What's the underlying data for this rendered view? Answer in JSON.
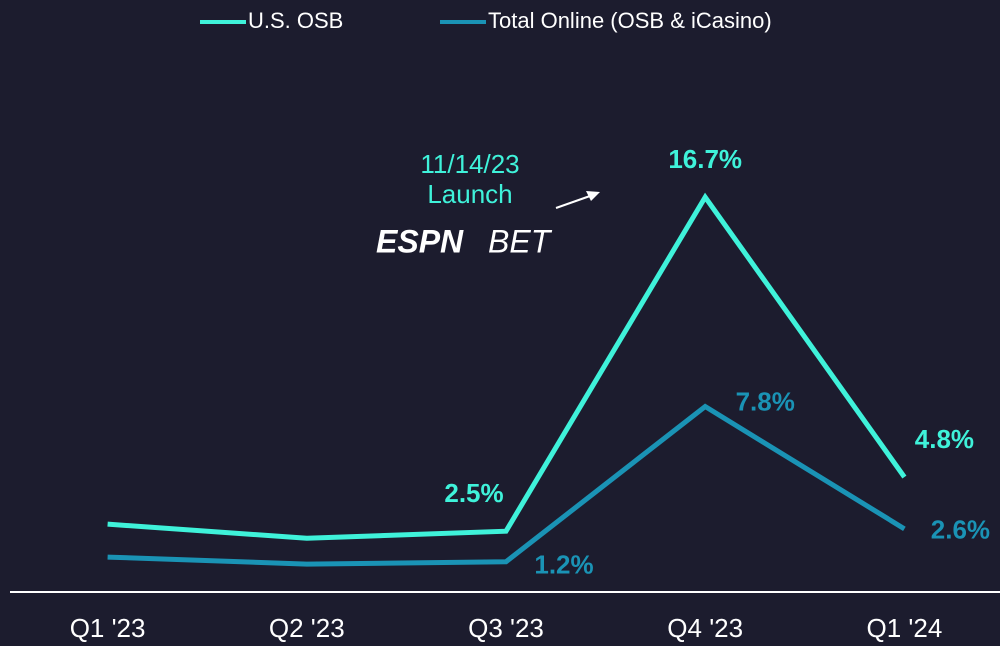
{
  "chart_data": {
    "type": "line",
    "categories": [
      "Q1 '23",
      "Q2 '23",
      "Q3 '23",
      "Q4 '23",
      "Q1 '24"
    ],
    "series": [
      {
        "name": "U.S. OSB",
        "color": "#3ff2da",
        "values": [
          2.8,
          2.2,
          2.5,
          16.7,
          4.8
        ],
        "value_labels": [
          null,
          null,
          "2.5%",
          "16.7%",
          "4.8%"
        ]
      },
      {
        "name": "Total Online (OSB & iCasino)",
        "color": "#1a93b5",
        "values": [
          1.4,
          1.1,
          1.2,
          7.8,
          2.6
        ],
        "value_labels": [
          null,
          null,
          "1.2%",
          "7.8%",
          "2.6%"
        ]
      }
    ],
    "ylim": [
      0,
      21
    ],
    "annotations": [
      "11/14/23",
      "Launch"
    ],
    "logo": [
      "ESPN",
      "BET"
    ],
    "legend": "top"
  }
}
